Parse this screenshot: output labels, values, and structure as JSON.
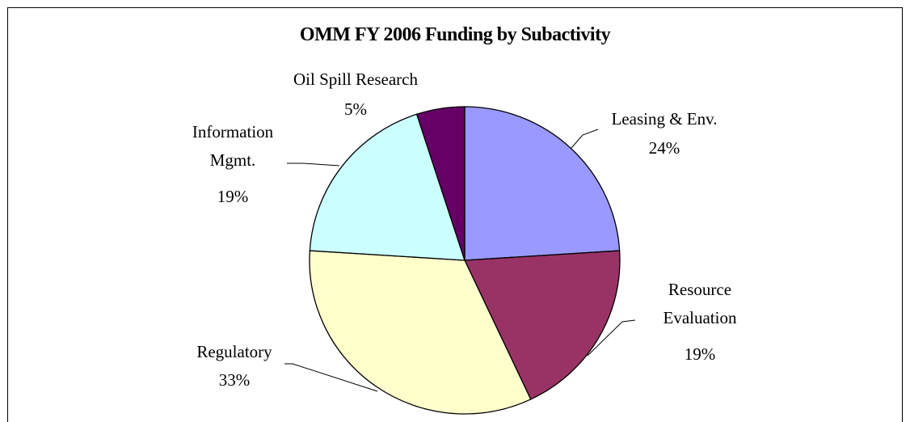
{
  "chart_data": {
    "type": "pie",
    "title": "OMM FY 2006 Funding by Subactivity",
    "categories": [
      "Leasing & Env.",
      "Resource Evaluation",
      "Regulatory",
      "Information Mgmt.",
      "Oil Spill Research"
    ],
    "values": [
      24,
      19,
      33,
      19,
      5
    ],
    "value_labels": [
      "24%",
      "19%",
      "33%",
      "19%",
      "5%"
    ],
    "colors": [
      "#9999ff",
      "#993366",
      "#ffffcc",
      "#ccffff",
      "#660066"
    ]
  }
}
